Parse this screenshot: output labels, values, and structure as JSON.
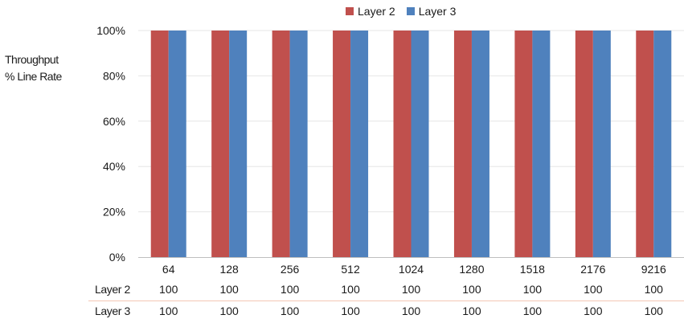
{
  "chart_data": {
    "type": "bar",
    "ylabel_lines": [
      "Throughput",
      "% Line Rate"
    ],
    "categories": [
      "64",
      "128",
      "256",
      "512",
      "1024",
      "1280",
      "1518",
      "2176",
      "9216"
    ],
    "series": [
      {
        "name": "Layer 2",
        "values": [
          100,
          100,
          100,
          100,
          100,
          100,
          100,
          100,
          100
        ],
        "color": "#c0504d"
      },
      {
        "name": "Layer 3",
        "values": [
          100,
          100,
          100,
          100,
          100,
          100,
          100,
          100,
          100
        ],
        "color": "#4f81bd"
      }
    ],
    "ylim": [
      0,
      100
    ],
    "yticks": [
      "0%",
      "20%",
      "40%",
      "60%",
      "80%",
      "100%"
    ],
    "grid": true,
    "legend_position": "top",
    "data_table": {
      "rows": [
        {
          "label": "Layer 2",
          "values": [
            "100",
            "100",
            "100",
            "100",
            "100",
            "100",
            "100",
            "100",
            "100"
          ]
        },
        {
          "label": "Layer 3",
          "values": [
            "100",
            "100",
            "100",
            "100",
            "100",
            "100",
            "100",
            "100",
            "100"
          ]
        }
      ]
    }
  }
}
